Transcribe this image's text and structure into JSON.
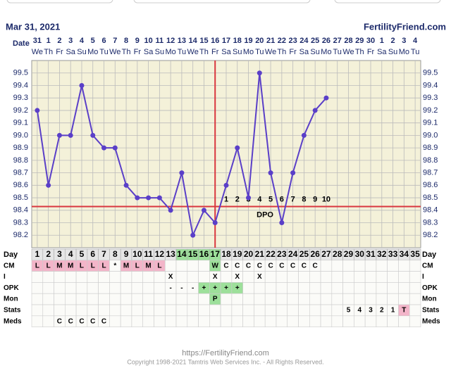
{
  "header": {
    "date": "Mar 31, 2021",
    "site": "FertilityFriend.com",
    "date_label": "Date"
  },
  "chart_data": {
    "type": "line",
    "dates": [
      31,
      1,
      2,
      3,
      4,
      5,
      6,
      7,
      8,
      9,
      10,
      11,
      12,
      13,
      14,
      15,
      16,
      17,
      18,
      19,
      20,
      21,
      22,
      23,
      24,
      25,
      26,
      27,
      28,
      29,
      30,
      1,
      2,
      3,
      4
    ],
    "weekdays": [
      "We",
      "Th",
      "Fr",
      "Sa",
      "Su",
      "Mo",
      "Tu",
      "We",
      "Th",
      "Fr",
      "Sa",
      "Su",
      "Mo",
      "Tu",
      "We",
      "Th",
      "Fr",
      "Sa",
      "Su",
      "Mo",
      "Tu",
      "We",
      "Th",
      "Fr",
      "Sa",
      "Su",
      "Mo",
      "Tu",
      "We",
      "Th",
      "Fr",
      "Sa",
      "Su",
      "Mo",
      "Tu"
    ],
    "series": [
      {
        "name": "Temperature",
        "color": "#5a3fc8",
        "values": [
          99.2,
          98.6,
          99.0,
          99.0,
          99.4,
          99.0,
          98.9,
          98.9,
          98.6,
          98.5,
          98.5,
          98.5,
          98.4,
          98.7,
          98.2,
          98.4,
          98.3,
          98.6,
          98.9,
          98.5,
          99.5,
          98.7,
          98.3,
          98.7,
          99.0,
          99.2,
          99.3,
          null,
          null,
          null,
          null,
          null,
          null,
          null,
          null
        ]
      }
    ],
    "ylim": [
      98.1,
      99.6
    ],
    "yticks": [
      98.2,
      98.3,
      98.4,
      98.5,
      98.6,
      98.7,
      98.8,
      98.9,
      {
        "value": 99.0,
        "label": "99.0"
      },
      99.1,
      99.2,
      99.3,
      99.4,
      99.5
    ],
    "coverline": 98.43,
    "coverline_color": "#d9363e",
    "ovulation_day": 17,
    "ovulation_color": "#d9363e",
    "dpo": [
      1,
      2,
      3,
      4,
      5,
      6,
      7,
      8,
      9,
      10
    ],
    "dpo_label": "DPO",
    "grid": true
  },
  "table": {
    "day_label": "Day",
    "days": [
      1,
      2,
      3,
      4,
      5,
      6,
      7,
      8,
      9,
      10,
      11,
      12,
      13,
      14,
      15,
      16,
      17,
      18,
      19,
      20,
      21,
      22,
      23,
      24,
      25,
      26,
      27,
      28,
      29,
      30,
      31,
      32,
      33,
      34,
      35
    ],
    "day_green": [
      14,
      15,
      16,
      17
    ],
    "rows": [
      {
        "label": "CM",
        "cells": [
          "L",
          "L",
          "M",
          "M",
          "L",
          "L",
          "L",
          "*",
          "M",
          "L",
          "M",
          "L",
          null,
          null,
          null,
          null,
          "W",
          "C",
          "C",
          "C",
          "C",
          "C",
          "C",
          "C",
          "C",
          "C",
          null,
          null,
          null,
          null,
          null,
          null,
          null,
          null,
          null
        ],
        "pink": [
          1,
          2,
          3,
          4,
          5,
          6,
          7,
          9,
          10,
          11,
          12
        ],
        "green": [
          17
        ]
      },
      {
        "label": "I",
        "cells": [
          null,
          null,
          null,
          null,
          null,
          null,
          null,
          null,
          null,
          null,
          null,
          null,
          "X",
          null,
          null,
          null,
          "X",
          null,
          "X",
          null,
          "X",
          null,
          null,
          null,
          null,
          null,
          null,
          null,
          null,
          null,
          null,
          null,
          null,
          null,
          null
        ],
        "pink": [],
        "green": []
      },
      {
        "label": "OPK",
        "cells": [
          null,
          null,
          null,
          null,
          null,
          null,
          null,
          null,
          null,
          null,
          null,
          null,
          "-",
          "-",
          "-",
          "+",
          "+",
          "+",
          "+",
          null,
          null,
          null,
          null,
          null,
          null,
          null,
          null,
          null,
          null,
          null,
          null,
          null,
          null,
          null,
          null
        ],
        "pink": [],
        "green": [
          16,
          17,
          18,
          19
        ]
      },
      {
        "label": "Mon",
        "cells": [
          null,
          null,
          null,
          null,
          null,
          null,
          null,
          null,
          null,
          null,
          null,
          null,
          null,
          null,
          null,
          null,
          "P",
          null,
          null,
          null,
          null,
          null,
          null,
          null,
          null,
          null,
          null,
          null,
          null,
          null,
          null,
          null,
          null,
          null,
          null
        ],
        "pink": [],
        "green": [
          17
        ]
      },
      {
        "label": "Stats",
        "cells": [
          null,
          null,
          null,
          null,
          null,
          null,
          null,
          null,
          null,
          null,
          null,
          null,
          null,
          null,
          null,
          null,
          null,
          null,
          null,
          null,
          null,
          null,
          null,
          null,
          null,
          null,
          null,
          null,
          "5",
          "4",
          "3",
          "2",
          "1",
          "T",
          null
        ],
        "pink": [
          34
        ],
        "green": []
      },
      {
        "label": "Meds",
        "cells": [
          null,
          null,
          "C",
          "C",
          "C",
          "C",
          "C",
          null,
          null,
          null,
          null,
          null,
          null,
          null,
          null,
          null,
          null,
          null,
          null,
          null,
          null,
          null,
          null,
          null,
          null,
          null,
          null,
          null,
          null,
          null,
          null,
          null,
          null,
          null,
          null
        ],
        "pink": [],
        "green": []
      }
    ]
  },
  "footer": {
    "url": "https://FertilityFriend.com",
    "copyright": "Copyright 1998-2021 Tamtris Web Services Inc. - All Rights Reserved."
  }
}
